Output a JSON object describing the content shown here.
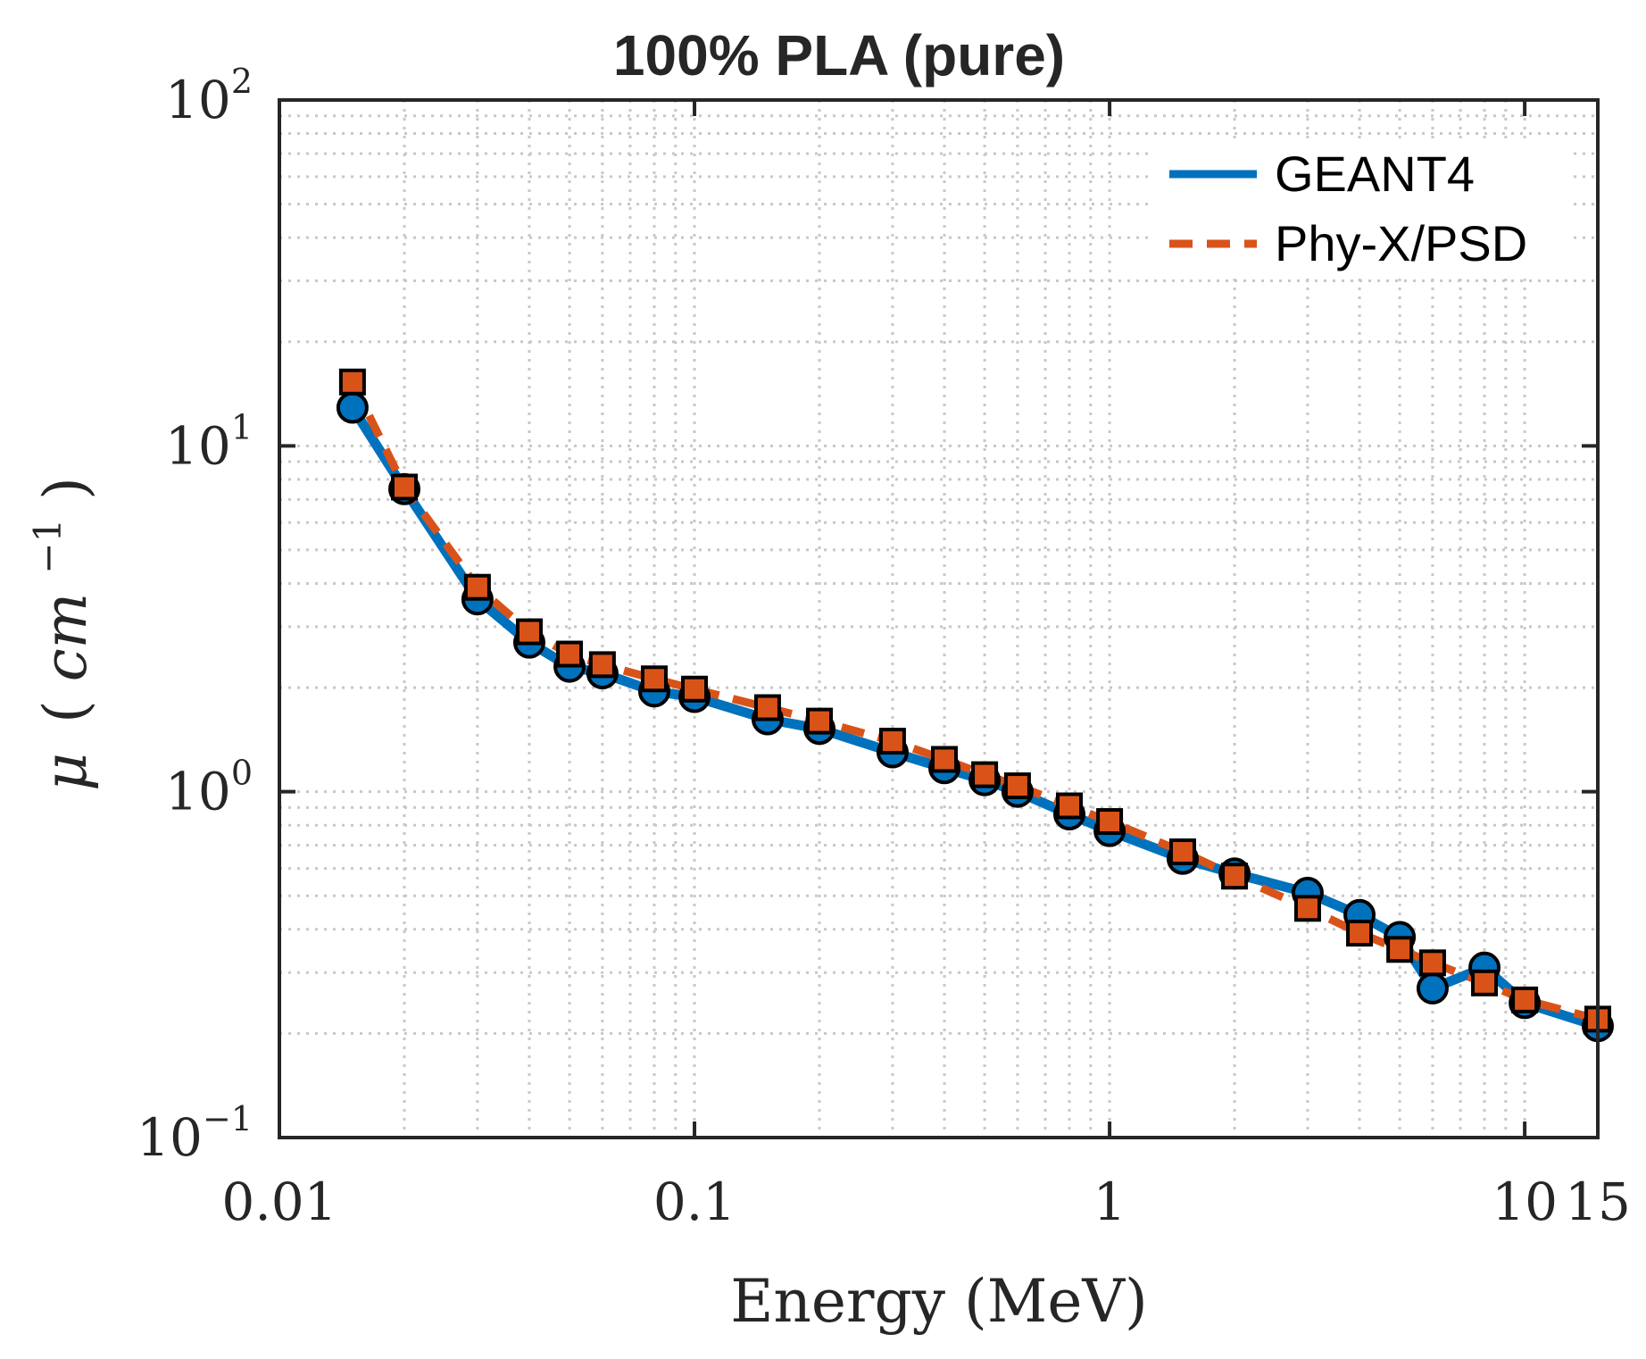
{
  "chart_data": {
    "type": "line",
    "title": "100% PLA (pure)",
    "xlabel": "Energy (MeV)",
    "ylabel": "μ (cm⁻¹)",
    "ylabel_parts": {
      "symbol": "μ",
      "open": "(",
      "unit": "cm",
      "exponent": "−1",
      "close": ")"
    },
    "xscale": "log",
    "yscale": "log",
    "xlim": [
      0.01,
      15
    ],
    "ylim": [
      0.1,
      100
    ],
    "x_ticks": [
      {
        "value": 0.01,
        "label": "0.01"
      },
      {
        "value": 0.1,
        "label": "0.1"
      },
      {
        "value": 1,
        "label": "1"
      },
      {
        "value": 10,
        "label": "10"
      },
      {
        "value": 15,
        "label": "15"
      }
    ],
    "y_ticks": [
      {
        "value": 0.1,
        "base": "10",
        "exponent": "−1"
      },
      {
        "value": 1,
        "base": "10",
        "exponent": "0"
      },
      {
        "value": 10,
        "base": "10",
        "exponent": "1"
      },
      {
        "value": 100,
        "base": "10",
        "exponent": "2"
      }
    ],
    "grid": true,
    "legend_position": "top-right",
    "x": [
      0.015,
      0.02,
      0.03,
      0.04,
      0.05,
      0.06,
      0.08,
      0.1,
      0.15,
      0.2,
      0.3,
      0.4,
      0.5,
      0.6,
      0.8,
      1.0,
      1.5,
      2.0,
      3.0,
      4.0,
      5.0,
      6.0,
      8.0,
      10.0,
      15.0
    ],
    "series": [
      {
        "name": "GEANT4",
        "color": "#0072BD",
        "line_style": "solid",
        "marker": "circle",
        "values": [
          12.9,
          7.5,
          3.6,
          2.7,
          2.3,
          2.2,
          1.95,
          1.88,
          1.62,
          1.52,
          1.3,
          1.17,
          1.08,
          1.0,
          0.86,
          0.77,
          0.64,
          0.58,
          0.51,
          0.44,
          0.38,
          0.27,
          0.31,
          0.245,
          0.21
        ]
      },
      {
        "name": "Phy-X/PSD",
        "color": "#D95319",
        "line_style": "dashed",
        "marker": "square",
        "values": [
          15.3,
          7.6,
          3.9,
          2.9,
          2.5,
          2.33,
          2.12,
          1.98,
          1.75,
          1.6,
          1.4,
          1.24,
          1.12,
          1.04,
          0.91,
          0.82,
          0.67,
          0.57,
          0.46,
          0.39,
          0.35,
          0.32,
          0.28,
          0.25,
          0.22
        ]
      }
    ]
  }
}
